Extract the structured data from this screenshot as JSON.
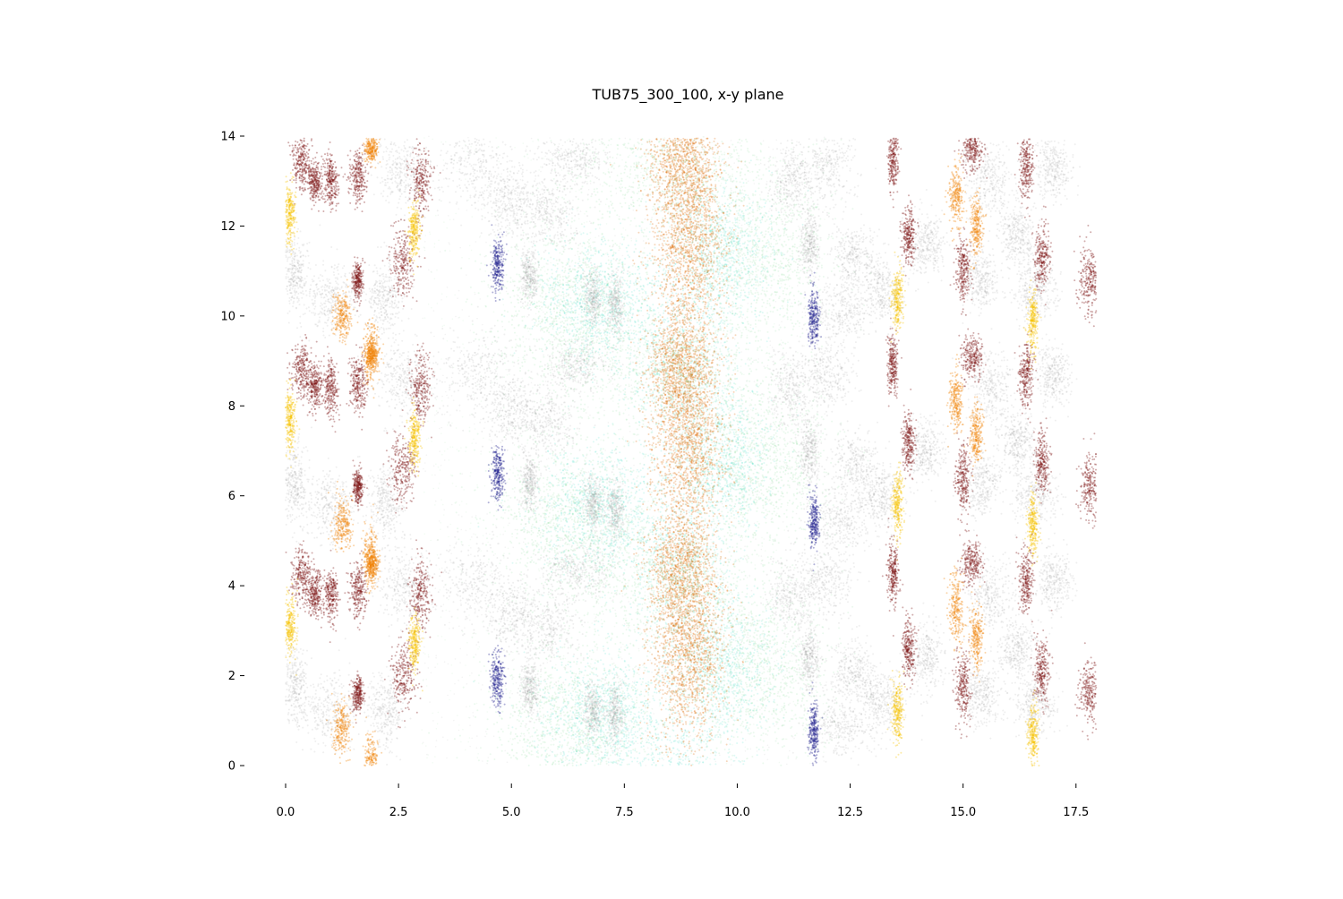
{
  "chart_data": {
    "type": "scatter",
    "title": "TUB75_300_100, x-y plane",
    "xlabel": "",
    "ylabel": "",
    "xlim": [
      0,
      18
    ],
    "ylim": [
      0,
      14
    ],
    "x_ticks": [
      "0.0",
      "2.5",
      "5.0",
      "7.5",
      "10.0",
      "12.5",
      "15.0",
      "17.5"
    ],
    "x_tick_values": [
      0,
      2.5,
      5,
      7.5,
      10,
      12.5,
      15,
      17.5
    ],
    "y_ticks": [
      "0",
      "2",
      "4",
      "6",
      "8",
      "10",
      "12",
      "14"
    ],
    "y_tick_values": [
      0,
      2,
      4,
      6,
      8,
      10,
      12,
      14
    ],
    "grid": false,
    "frame": false,
    "y_period": 4.6,
    "colors": {
      "gray": "#9a9a9a",
      "darkred": "#7a1010",
      "orange": "#f2850a",
      "gold": "#f5c400",
      "navy": "#1c1c8c",
      "turquoise": "#40e0c8",
      "lightgreen": "#90e0a0",
      "burntorange": "#e0700a"
    },
    "clusters": [
      {
        "color": "darkred",
        "x": 0.35,
        "y": 13.4,
        "sx": 0.12,
        "sy": 0.3
      },
      {
        "color": "darkred",
        "x": 0.65,
        "y": 13.0,
        "sx": 0.08,
        "sy": 0.25
      },
      {
        "color": "darkred",
        "x": 1.0,
        "y": 13.0,
        "sx": 0.08,
        "sy": 0.3
      },
      {
        "color": "darkred",
        "x": 1.6,
        "y": 13.1,
        "sx": 0.1,
        "sy": 0.3
      },
      {
        "color": "darkred",
        "x": 2.6,
        "y": 11.2,
        "sx": 0.15,
        "sy": 0.4
      },
      {
        "color": "darkred",
        "x": 3.0,
        "y": 13.0,
        "sx": 0.12,
        "sy": 0.4
      },
      {
        "color": "darkred",
        "x": 1.6,
        "y": 10.8,
        "sx": 0.06,
        "sy": 0.2
      },
      {
        "color": "darkred",
        "x": 13.45,
        "y": 13.5,
        "sx": 0.06,
        "sy": 0.35
      },
      {
        "color": "darkred",
        "x": 13.8,
        "y": 11.8,
        "sx": 0.07,
        "sy": 0.35
      },
      {
        "color": "darkred",
        "x": 15.0,
        "y": 11.0,
        "sx": 0.08,
        "sy": 0.4
      },
      {
        "color": "darkred",
        "x": 15.2,
        "y": 13.7,
        "sx": 0.12,
        "sy": 0.25
      },
      {
        "color": "darkred",
        "x": 16.4,
        "y": 13.3,
        "sx": 0.08,
        "sy": 0.35
      },
      {
        "color": "darkred",
        "x": 16.75,
        "y": 11.3,
        "sx": 0.08,
        "sy": 0.35
      },
      {
        "color": "darkred",
        "x": 17.8,
        "y": 10.8,
        "sx": 0.12,
        "sy": 0.35
      },
      {
        "color": "orange",
        "x": 1.25,
        "y": 10.0,
        "sx": 0.1,
        "sy": 0.3
      },
      {
        "color": "orange",
        "x": 1.9,
        "y": 13.7,
        "sx": 0.07,
        "sy": 0.15
      },
      {
        "color": "orange",
        "x": 1.9,
        "y": 9.2,
        "sx": 0.08,
        "sy": 0.35
      },
      {
        "color": "orange",
        "x": 14.85,
        "y": 12.7,
        "sx": 0.08,
        "sy": 0.35
      },
      {
        "color": "orange",
        "x": 15.3,
        "y": 12.0,
        "sx": 0.07,
        "sy": 0.35
      },
      {
        "color": "gold",
        "x": 0.1,
        "y": 12.3,
        "sx": 0.06,
        "sy": 0.35
      },
      {
        "color": "gold",
        "x": 2.85,
        "y": 11.9,
        "sx": 0.06,
        "sy": 0.3
      },
      {
        "color": "gold",
        "x": 13.55,
        "y": 10.4,
        "sx": 0.06,
        "sy": 0.35
      },
      {
        "color": "gold",
        "x": 16.55,
        "y": 9.9,
        "sx": 0.06,
        "sy": 0.35
      },
      {
        "color": "navy",
        "x": 4.7,
        "y": 11.1,
        "sx": 0.07,
        "sy": 0.3
      },
      {
        "color": "navy",
        "x": 11.7,
        "y": 10.0,
        "sx": 0.06,
        "sy": 0.3
      },
      {
        "color": "gray",
        "x": 0.2,
        "y": 10.9,
        "sx": 0.15,
        "sy": 0.45
      },
      {
        "color": "gray",
        "x": 1.0,
        "y": 10.4,
        "sx": 0.3,
        "sy": 0.4
      },
      {
        "color": "gray",
        "x": 2.2,
        "y": 10.4,
        "sx": 0.2,
        "sy": 0.4
      },
      {
        "color": "gray",
        "x": 2.6,
        "y": 13.2,
        "sx": 0.3,
        "sy": 0.4
      },
      {
        "color": "gray",
        "x": 4.2,
        "y": 13.3,
        "sx": 0.45,
        "sy": 0.45
      },
      {
        "color": "gray",
        "x": 5.0,
        "y": 12.5,
        "sx": 0.3,
        "sy": 0.4
      },
      {
        "color": "gray",
        "x": 5.8,
        "y": 12.3,
        "sx": 0.35,
        "sy": 0.4
      },
      {
        "color": "gray",
        "x": 6.4,
        "y": 13.5,
        "sx": 0.4,
        "sy": 0.3
      },
      {
        "color": "gray",
        "x": 5.4,
        "y": 10.9,
        "sx": 0.1,
        "sy": 0.3
      },
      {
        "color": "gray",
        "x": 6.8,
        "y": 10.4,
        "sx": 0.1,
        "sy": 0.3
      },
      {
        "color": "gray",
        "x": 7.3,
        "y": 10.3,
        "sx": 0.1,
        "sy": 0.35
      },
      {
        "color": "gray",
        "x": 11.2,
        "y": 13.0,
        "sx": 0.25,
        "sy": 0.4
      },
      {
        "color": "gray",
        "x": 12.0,
        "y": 13.3,
        "sx": 0.3,
        "sy": 0.4
      },
      {
        "color": "gray",
        "x": 11.6,
        "y": 11.6,
        "sx": 0.1,
        "sy": 0.35
      },
      {
        "color": "gray",
        "x": 12.6,
        "y": 11.3,
        "sx": 0.25,
        "sy": 0.35
      },
      {
        "color": "gray",
        "x": 12.3,
        "y": 10.1,
        "sx": 0.35,
        "sy": 0.35
      },
      {
        "color": "gray",
        "x": 13.2,
        "y": 10.6,
        "sx": 0.25,
        "sy": 0.35
      },
      {
        "color": "gray",
        "x": 14.2,
        "y": 11.6,
        "sx": 0.2,
        "sy": 0.35
      },
      {
        "color": "gray",
        "x": 15.6,
        "y": 13.0,
        "sx": 0.25,
        "sy": 0.4
      },
      {
        "color": "gray",
        "x": 16.2,
        "y": 11.8,
        "sx": 0.2,
        "sy": 0.35
      },
      {
        "color": "gray",
        "x": 17.0,
        "y": 13.3,
        "sx": 0.2,
        "sy": 0.35
      },
      {
        "color": "gray",
        "x": 15.4,
        "y": 10.8,
        "sx": 0.2,
        "sy": 0.35
      },
      {
        "color": "gray",
        "x": 16.6,
        "y": 10.6,
        "sx": 0.25,
        "sy": 0.35
      }
    ],
    "central_band": [
      {
        "color": "lightgreen",
        "x": 6.3,
        "y": 10.2,
        "sx": 0.9,
        "sy": 0.9,
        "w": 1.3
      },
      {
        "color": "turquoise",
        "x": 7.0,
        "y": 10.3,
        "sx": 0.7,
        "sy": 0.7,
        "w": 1.0
      },
      {
        "color": "lightgreen",
        "x": 10.5,
        "y": 11.3,
        "sx": 0.8,
        "sy": 0.9,
        "w": 1.2
      },
      {
        "color": "turquoise",
        "x": 9.6,
        "y": 11.4,
        "sx": 0.6,
        "sy": 0.8,
        "w": 1.0
      },
      {
        "color": "burntorange",
        "x": 8.9,
        "y": 12.0,
        "sx": 0.4,
        "sy": 1.2,
        "w": 2.0
      },
      {
        "color": "burntorange",
        "x": 8.7,
        "y": 13.6,
        "sx": 0.35,
        "sy": 0.6,
        "w": 0.8
      },
      {
        "color": "turquoise",
        "x": 8.7,
        "y": 9.0,
        "sx": 0.6,
        "sy": 0.8,
        "w": 0.6
      },
      {
        "color": "lightgreen",
        "x": 8.5,
        "y": 13.3,
        "sx": 1.2,
        "sy": 0.7,
        "w": 1.0
      }
    ]
  }
}
